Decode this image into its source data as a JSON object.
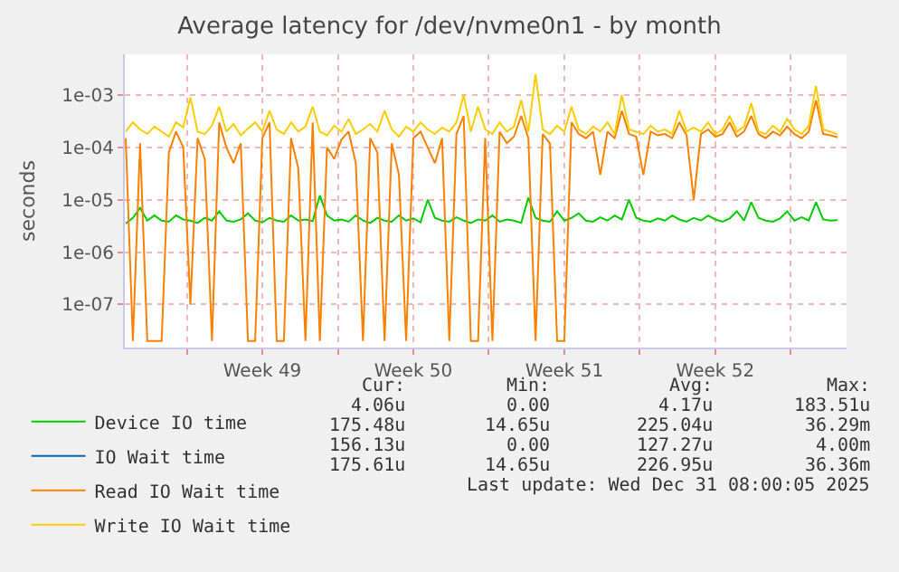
{
  "chart_data": {
    "type": "line",
    "title": "Average latency for /dev/nvme0n1 - by month",
    "ylabel": "seconds",
    "x": [
      "2025-11-28T04:00",
      "2025-11-28T12:00",
      "2025-11-28T20:00",
      "2025-11-29T04:00",
      "2025-11-29T12:00",
      "2025-11-29T20:00",
      "2025-11-30T04:00",
      "2025-11-30T12:00",
      "2025-11-30T20:00",
      "2025-12-01T04:00",
      "2025-12-01T12:00",
      "2025-12-01T20:00",
      "2025-12-02T04:00",
      "2025-12-02T12:00",
      "2025-12-02T20:00",
      "2025-12-03T04:00",
      "2025-12-03T12:00",
      "2025-12-03T20:00",
      "2025-12-04T04:00",
      "2025-12-04T12:00",
      "2025-12-04T20:00",
      "2025-12-05T04:00",
      "2025-12-05T12:00",
      "2025-12-05T20:00",
      "2025-12-06T04:00",
      "2025-12-06T12:00",
      "2025-12-06T20:00",
      "2025-12-07T04:00",
      "2025-12-07T12:00",
      "2025-12-07T20:00",
      "2025-12-08T04:00",
      "2025-12-08T12:00",
      "2025-12-08T20:00",
      "2025-12-09T04:00",
      "2025-12-09T12:00",
      "2025-12-09T20:00",
      "2025-12-10T04:00",
      "2025-12-10T12:00",
      "2025-12-10T20:00",
      "2025-12-11T04:00",
      "2025-12-11T12:00",
      "2025-12-11T20:00",
      "2025-12-12T04:00",
      "2025-12-12T12:00",
      "2025-12-12T20:00",
      "2025-12-13T04:00",
      "2025-12-13T12:00",
      "2025-12-13T20:00",
      "2025-12-14T04:00",
      "2025-12-14T12:00",
      "2025-12-14T20:00",
      "2025-12-15T04:00",
      "2025-12-15T12:00",
      "2025-12-15T20:00",
      "2025-12-16T04:00",
      "2025-12-16T12:00",
      "2025-12-16T20:00",
      "2025-12-17T04:00",
      "2025-12-17T12:00",
      "2025-12-17T20:00",
      "2025-12-18T04:00",
      "2025-12-18T12:00",
      "2025-12-18T20:00",
      "2025-12-19T04:00",
      "2025-12-19T12:00",
      "2025-12-19T20:00",
      "2025-12-20T04:00",
      "2025-12-20T12:00",
      "2025-12-20T20:00",
      "2025-12-21T04:00",
      "2025-12-21T12:00",
      "2025-12-21T20:00",
      "2025-12-22T04:00",
      "2025-12-22T12:00",
      "2025-12-22T20:00",
      "2025-12-23T04:00",
      "2025-12-23T12:00",
      "2025-12-23T20:00",
      "2025-12-24T04:00",
      "2025-12-24T12:00",
      "2025-12-24T20:00",
      "2025-12-25T04:00",
      "2025-12-25T12:00",
      "2025-12-25T20:00",
      "2025-12-26T04:00",
      "2025-12-26T12:00",
      "2025-12-26T20:00",
      "2025-12-27T04:00",
      "2025-12-27T12:00",
      "2025-12-27T20:00",
      "2025-12-28T04:00",
      "2025-12-28T12:00",
      "2025-12-28T20:00",
      "2025-12-29T04:00",
      "2025-12-29T12:00",
      "2025-12-29T20:00",
      "2025-12-30T04:00",
      "2025-12-30T12:00",
      "2025-12-30T20:00",
      "2025-12-31T04:00"
    ],
    "series": [
      {
        "name": "Device IO time",
        "color": "#00cc00",
        "values": [
          3.5e-06,
          4.5e-06,
          7e-06,
          4e-06,
          5e-06,
          4e-06,
          3.8e-06,
          5e-06,
          4.2e-06,
          4e-06,
          3.6e-06,
          4.5e-06,
          4e-06,
          6e-06,
          4e-06,
          3.8e-06,
          4.2e-06,
          5.5e-06,
          4e-06,
          3.7e-06,
          4.5e-06,
          4e-06,
          3.8e-06,
          5e-06,
          4e-06,
          4.2e-06,
          3.9e-06,
          1.2e-05,
          5e-06,
          4e-06,
          4.2e-06,
          3.8e-06,
          5e-06,
          4e-06,
          3.6e-06,
          4.5e-06,
          4e-06,
          3.8e-06,
          5e-06,
          4e-06,
          4.4e-06,
          3.7e-06,
          1e-05,
          4.5e-06,
          4e-06,
          3.8e-06,
          4.6e-06,
          4e-06,
          3.6e-06,
          4.2e-06,
          4e-06,
          5e-06,
          3.8e-06,
          4.2e-06,
          4e-06,
          3.6e-06,
          1.1e-05,
          4.5e-06,
          4e-06,
          3.8e-06,
          6e-06,
          4e-06,
          4.5e-06,
          5.5e-06,
          4e-06,
          3.8e-06,
          4.6e-06,
          4e-06,
          5e-06,
          4.2e-06,
          1e-05,
          4.5e-06,
          4e-06,
          3.8e-06,
          4.4e-06,
          4e-06,
          5e-06,
          4.2e-06,
          3.8e-06,
          4.5e-06,
          4e-06,
          5e-06,
          4.2e-06,
          3.8e-06,
          4.4e-06,
          6e-06,
          4e-06,
          9e-06,
          4.5e-06,
          4e-06,
          3.8e-06,
          4.4e-06,
          6e-06,
          4e-06,
          4.6e-06,
          4e-06,
          9e-06,
          4.2e-06,
          4e-06,
          4.06e-06
        ]
      },
      {
        "name": "IO Wait time",
        "color": "#0066b3",
        "values": [
          null,
          null,
          null,
          null,
          null,
          null,
          null,
          null,
          null,
          null,
          null,
          null,
          null,
          null,
          null,
          null,
          null,
          null,
          null,
          null,
          null,
          null,
          null,
          null,
          null,
          null,
          null,
          null,
          null,
          null,
          null,
          null,
          null,
          null,
          null,
          null,
          null,
          null,
          null,
          null,
          null,
          null,
          null,
          null,
          null,
          null,
          null,
          null,
          null,
          null,
          null,
          null,
          null,
          null,
          null,
          null,
          null,
          null,
          null,
          null,
          null,
          null,
          null,
          null,
          null,
          null,
          null,
          null,
          null,
          null,
          null,
          null,
          null,
          null,
          null,
          null,
          null,
          null,
          null,
          null,
          null,
          null,
          null,
          null,
          null,
          null,
          null,
          null,
          null,
          null,
          null,
          null,
          null,
          null,
          null,
          null,
          null,
          null,
          null,
          null
        ]
      },
      {
        "name": "Read IO Wait time",
        "color": "#ff8000",
        "values": [
          0.00015,
          2e-08,
          0.00012,
          2e-08,
          2e-08,
          2e-08,
          8e-05,
          0.0002,
          0.0001,
          1e-07,
          0.00015,
          6e-05,
          2e-08,
          0.0003,
          0.0001,
          5e-05,
          0.00012,
          2e-08,
          2e-08,
          0.00015,
          0.0003,
          2e-08,
          2e-08,
          0.00015,
          4e-05,
          2e-08,
          0.0003,
          2e-08,
          0.0001,
          6e-05,
          0.00014,
          0.0002,
          5e-05,
          2e-08,
          0.00015,
          8e-05,
          2e-08,
          0.00012,
          3e-05,
          2e-08,
          0.00015,
          0.0002,
          0.0001,
          5e-05,
          0.00015,
          2e-08,
          0.00018,
          0.0004,
          2e-08,
          2e-08,
          0.00015,
          2e-08,
          0.0002,
          0.00012,
          0.00016,
          0.0004,
          0.00015,
          2e-08,
          0.00018,
          0.00012,
          2e-08,
          2e-08,
          0.0003,
          0.00018,
          0.00015,
          0.0002,
          3e-05,
          0.0002,
          0.00015,
          0.0005,
          0.00018,
          0.00016,
          3e-05,
          0.0002,
          0.00017,
          0.00018,
          0.00015,
          0.0003,
          0.00017,
          1e-05,
          0.00018,
          0.00022,
          0.00016,
          0.00018,
          0.0003,
          0.00016,
          0.0002,
          0.0004,
          0.00018,
          0.00015,
          0.0002,
          0.00017,
          0.00025,
          0.00018,
          0.00015,
          0.0002,
          0.0008,
          0.00018,
          0.00017,
          0.000156
        ]
      },
      {
        "name": "Write IO Wait time",
        "color": "#ffcc00",
        "values": [
          0.0002,
          0.0003,
          0.00022,
          0.00018,
          0.00025,
          0.0002,
          0.00016,
          0.0003,
          0.00024,
          0.0009,
          0.0002,
          0.00018,
          0.00026,
          0.0006,
          0.0002,
          0.00028,
          0.00017,
          0.00023,
          0.0003,
          0.0002,
          0.0005,
          0.00022,
          0.00018,
          0.0003,
          0.0002,
          0.00025,
          0.0006,
          0.0002,
          0.00017,
          0.00026,
          0.0002,
          0.00035,
          0.00018,
          0.00022,
          0.00028,
          0.0002,
          0.0005,
          0.00022,
          0.00016,
          0.00025,
          0.0002,
          0.0003,
          0.00022,
          0.00018,
          0.00024,
          0.0002,
          0.0003,
          0.001,
          0.0002,
          0.0006,
          0.00022,
          0.00018,
          0.0003,
          0.0002,
          0.00025,
          0.0008,
          0.0002,
          0.0025,
          0.00022,
          0.00018,
          0.00026,
          0.0002,
          0.0006,
          0.00022,
          0.00018,
          0.00025,
          0.0002,
          0.0003,
          0.00018,
          0.001,
          0.00022,
          0.0002,
          0.00018,
          0.00026,
          0.0002,
          0.00022,
          0.00018,
          0.0005,
          0.0002,
          0.00024,
          0.0002,
          0.0003,
          0.00018,
          0.00022,
          0.0004,
          0.0002,
          0.00025,
          0.0007,
          0.0002,
          0.00018,
          0.00026,
          0.0002,
          0.00035,
          0.00022,
          0.00018,
          0.00026,
          0.0015,
          0.00022,
          0.0002,
          0.000176
        ]
      }
    ],
    "xlim": [
      "2025-11-28T03:00",
      "2025-12-31T14:00"
    ],
    "xticks": [
      {
        "value": "2025-12-01",
        "label": null
      },
      {
        "value": "2025-12-04T12:00",
        "label": "Week 49"
      },
      {
        "value": "2025-12-08",
        "label": null
      },
      {
        "value": "2025-12-11T12:00",
        "label": "Week 50"
      },
      {
        "value": "2025-12-15",
        "label": null
      },
      {
        "value": "2025-12-18T12:00",
        "label": "Week 51"
      },
      {
        "value": "2025-12-22",
        "label": null
      },
      {
        "value": "2025-12-25T12:00",
        "label": "Week 52"
      },
      {
        "value": "2025-12-29",
        "label": null
      }
    ],
    "ylim": [
      1.5e-08,
      0.006
    ],
    "yticks": [
      {
        "value": 1e-07,
        "label": "1e-07"
      },
      {
        "value": 1e-06,
        "label": "1e-06"
      },
      {
        "value": 1e-05,
        "label": "1e-05"
      },
      {
        "value": 0.0001,
        "label": "1e-04"
      },
      {
        "value": 0.001,
        "label": "1e-03"
      }
    ],
    "log": "y",
    "grid": true,
    "legend": "bottom left",
    "marker": "none",
    "line_style": "solid",
    "annotations": [
      "Cur:",
      "Min:",
      "Avg:",
      "Max:",
      "4.06u",
      "0.00",
      "4.17u",
      "183.51u",
      "175.48u",
      "14.65u",
      "225.04u",
      "36.29m",
      "156.13u",
      "0.00",
      "127.27u",
      "4.00m",
      "175.61u",
      "14.65u",
      "226.95u",
      "36.36m",
      "Last update: Wed Dec 31 08:00:05 2025"
    ]
  }
}
